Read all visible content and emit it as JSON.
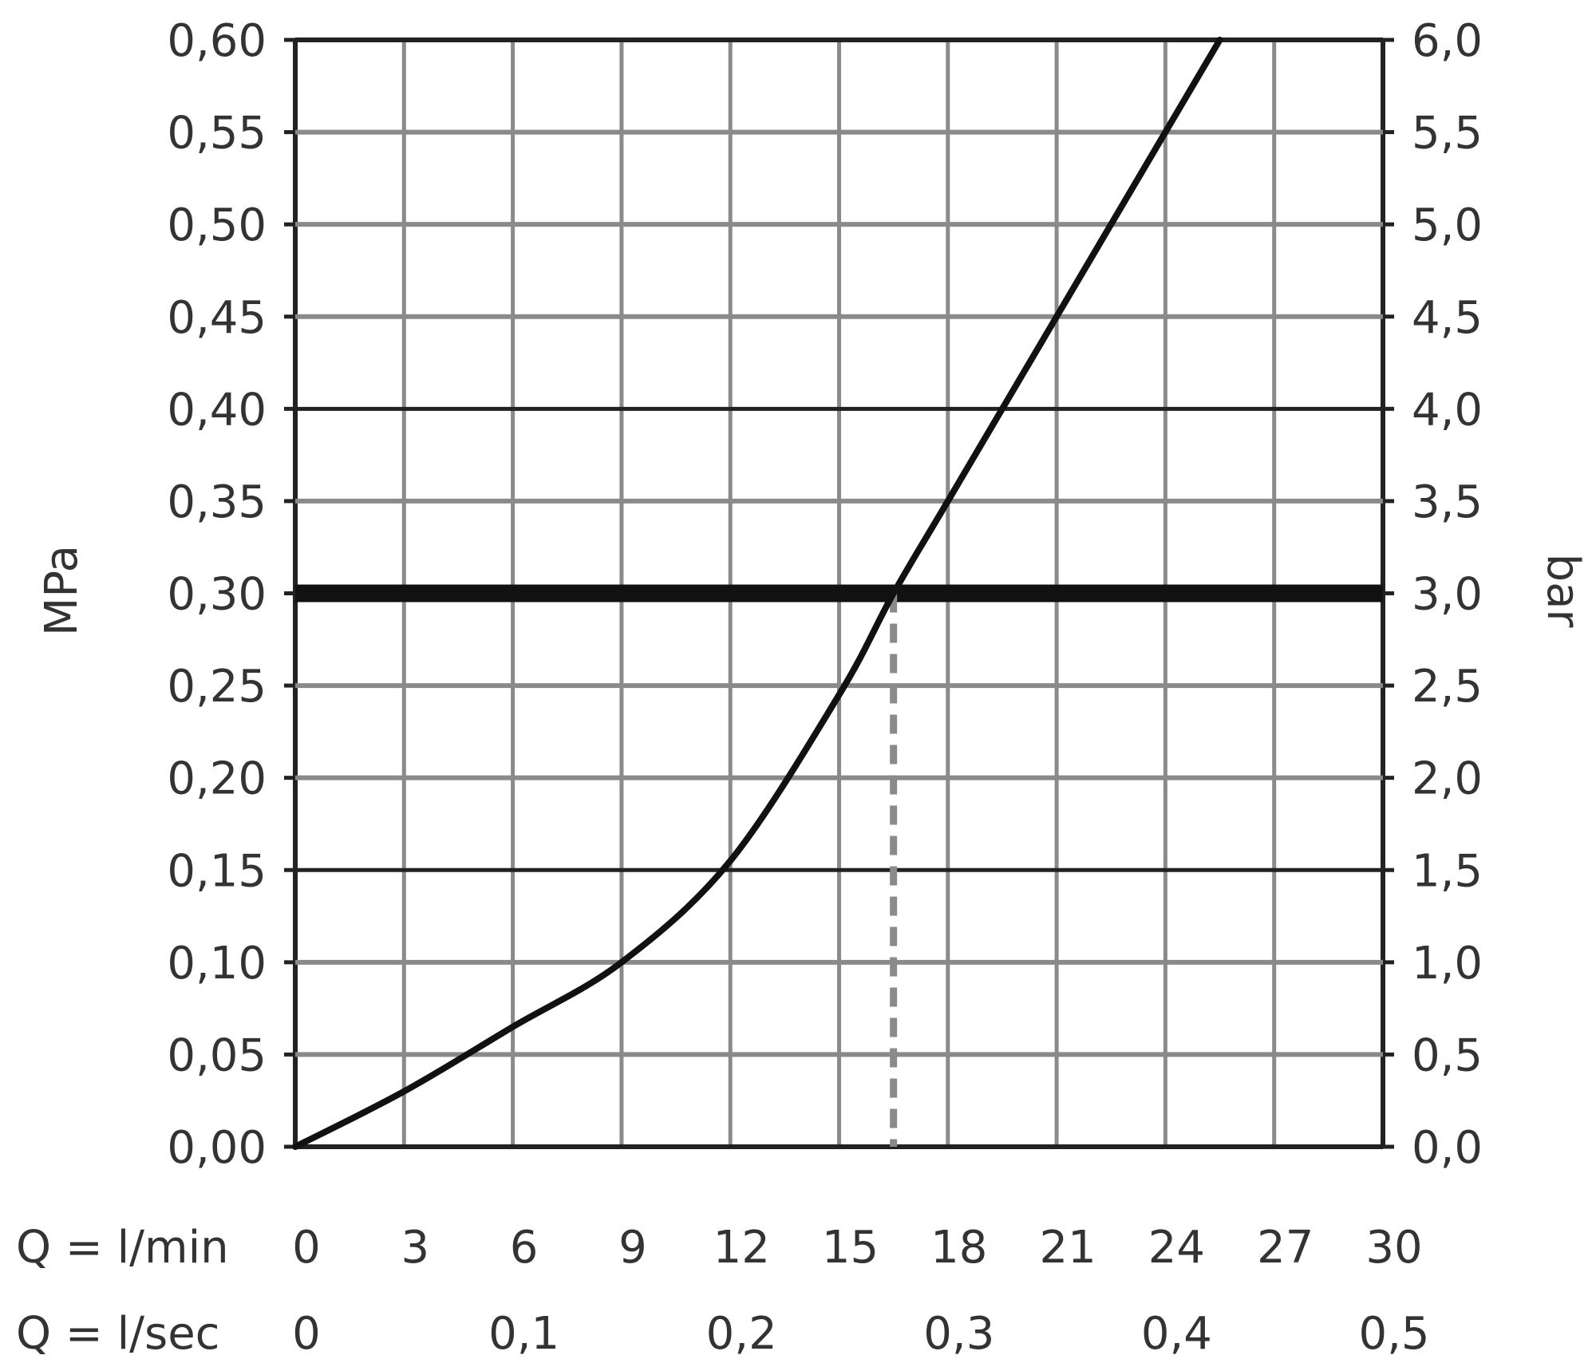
{
  "chart_data": {
    "type": "line",
    "title": "",
    "ylabel_left": "MPa",
    "ylabel_right": "bar",
    "xlabel_rows": [
      "Q = l/min",
      "Q = l/sec"
    ],
    "x_lmin_ticks": [
      "0",
      "3",
      "6",
      "9",
      "12",
      "15",
      "18",
      "21",
      "24",
      "27",
      "30"
    ],
    "x_lsec_ticks": [
      "0",
      "0,1",
      "0,2",
      "0,3",
      "0,4",
      "0,5"
    ],
    "y_left_ticks": [
      "0,00",
      "0,05",
      "0,10",
      "0,15",
      "0,20",
      "0,25",
      "0,30",
      "0,35",
      "0,40",
      "0,45",
      "0,50",
      "0,55",
      "0,60"
    ],
    "y_right_ticks": [
      "0,0",
      "0,5",
      "1,0",
      "1,5",
      "2,0",
      "2,5",
      "3,0",
      "3,5",
      "4,0",
      "4,5",
      "5,0",
      "5,5",
      "6,0"
    ],
    "xlim": [
      0,
      30
    ],
    "ylim": [
      0,
      0.6
    ],
    "grid": true,
    "series": [
      {
        "x": [
          0,
          3,
          6,
          9,
          12,
          15,
          16.5,
          18,
          21,
          24,
          25.5
        ],
        "y": [
          0,
          0.03,
          0.065,
          0.1,
          0.155,
          0.245,
          0.3,
          0.35,
          0.45,
          0.55,
          0.6
        ]
      }
    ],
    "reference_line_y": 0.3,
    "reference_drop_x": 16.5,
    "colors": {
      "curve": "#111111",
      "grid": "#8a8a8a",
      "reference": "#111111",
      "drop": "#8a8a8a"
    }
  }
}
